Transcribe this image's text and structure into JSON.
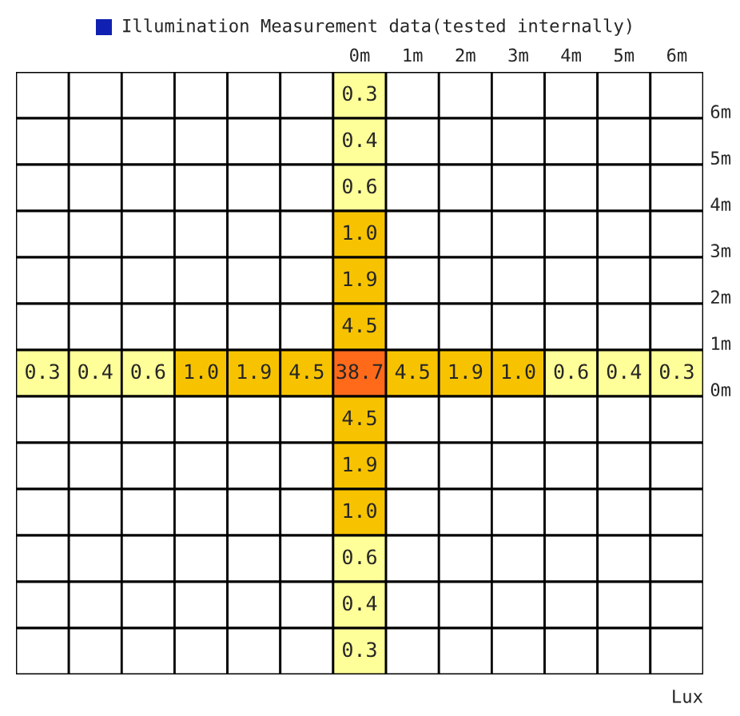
{
  "chart_data": {
    "type": "heatmap",
    "title": "Illumination Measurement data(tested internally)",
    "categories": [
      null,
      null,
      null,
      null,
      null,
      null,
      "0m",
      "1m",
      "2m",
      "3m",
      "4m",
      "5m",
      "6m"
    ],
    "y_categories": [
      null,
      null,
      null,
      null,
      null,
      null,
      null,
      null,
      null,
      null,
      null,
      null,
      null
    ],
    "y2_categories": [
      "6m",
      "5m",
      "4m",
      "3m",
      "2m",
      "1m",
      "0m",
      null,
      null,
      null,
      null,
      null,
      null
    ],
    "cells": [
      [
        null,
        null,
        null,
        null,
        null,
        null,
        0.3,
        null,
        null,
        null,
        null,
        null,
        null
      ],
      [
        null,
        null,
        null,
        null,
        null,
        null,
        0.4,
        null,
        null,
        null,
        null,
        null,
        null
      ],
      [
        null,
        null,
        null,
        null,
        null,
        null,
        0.6,
        null,
        null,
        null,
        null,
        null,
        null
      ],
      [
        null,
        null,
        null,
        null,
        null,
        null,
        1.0,
        null,
        null,
        null,
        null,
        null,
        null
      ],
      [
        null,
        null,
        null,
        null,
        null,
        null,
        1.9,
        null,
        null,
        null,
        null,
        null,
        null
      ],
      [
        null,
        null,
        null,
        null,
        null,
        null,
        4.5,
        null,
        null,
        null,
        null,
        null,
        null
      ],
      [
        0.3,
        0.4,
        0.6,
        1.0,
        1.9,
        4.5,
        38.7,
        4.5,
        1.9,
        1.0,
        0.6,
        0.4,
        0.3
      ],
      [
        null,
        null,
        null,
        null,
        null,
        null,
        4.5,
        null,
        null,
        null,
        null,
        null,
        null
      ],
      [
        null,
        null,
        null,
        null,
        null,
        null,
        1.9,
        null,
        null,
        null,
        null,
        null,
        null
      ],
      [
        null,
        null,
        null,
        null,
        null,
        null,
        1.0,
        null,
        null,
        null,
        null,
        null,
        null
      ],
      [
        null,
        null,
        null,
        null,
        null,
        null,
        0.6,
        null,
        null,
        null,
        null,
        null,
        null
      ],
      [
        null,
        null,
        null,
        null,
        null,
        null,
        0.4,
        null,
        null,
        null,
        null,
        null,
        null
      ],
      [
        null,
        null,
        null,
        null,
        null,
        null,
        0.3,
        null,
        null,
        null,
        null,
        null,
        null
      ]
    ],
    "colors": [
      [
        null,
        null,
        null,
        null,
        null,
        null,
        "#ffff99",
        null,
        null,
        null,
        null,
        null,
        null
      ],
      [
        null,
        null,
        null,
        null,
        null,
        null,
        "#ffff99",
        null,
        null,
        null,
        null,
        null,
        null
      ],
      [
        null,
        null,
        null,
        null,
        null,
        null,
        "#ffff99",
        null,
        null,
        null,
        null,
        null,
        null
      ],
      [
        null,
        null,
        null,
        null,
        null,
        null,
        "#f7c300",
        null,
        null,
        null,
        null,
        null,
        null
      ],
      [
        null,
        null,
        null,
        null,
        null,
        null,
        "#f7c300",
        null,
        null,
        null,
        null,
        null,
        null
      ],
      [
        null,
        null,
        null,
        null,
        null,
        null,
        "#f7c300",
        null,
        null,
        null,
        null,
        null,
        null
      ],
      [
        "#ffff99",
        "#ffff99",
        "#ffff99",
        "#f7c300",
        "#f7c300",
        "#f7c300",
        "#ff6a1a",
        "#f7c300",
        "#f7c300",
        "#f7c300",
        "#ffff99",
        "#ffff99",
        "#ffff99"
      ],
      [
        null,
        null,
        null,
        null,
        null,
        null,
        "#f7c300",
        null,
        null,
        null,
        null,
        null,
        null
      ],
      [
        null,
        null,
        null,
        null,
        null,
        null,
        "#f7c300",
        null,
        null,
        null,
        null,
        null,
        null
      ],
      [
        null,
        null,
        null,
        null,
        null,
        null,
        "#f7c300",
        null,
        null,
        null,
        null,
        null,
        null
      ],
      [
        null,
        null,
        null,
        null,
        null,
        null,
        "#ffff99",
        null,
        null,
        null,
        null,
        null,
        null
      ],
      [
        null,
        null,
        null,
        null,
        null,
        null,
        "#ffff99",
        null,
        null,
        null,
        null,
        null,
        null
      ],
      [
        null,
        null,
        null,
        null,
        null,
        null,
        "#ffff99",
        null,
        null,
        null,
        null,
        null,
        null
      ]
    ],
    "cell_labels": [
      [
        null,
        null,
        null,
        null,
        null,
        null,
        "0.3",
        null,
        null,
        null,
        null,
        null,
        null
      ],
      [
        null,
        null,
        null,
        null,
        null,
        null,
        "0.4",
        null,
        null,
        null,
        null,
        null,
        null
      ],
      [
        null,
        null,
        null,
        null,
        null,
        null,
        "0.6",
        null,
        null,
        null,
        null,
        null,
        null
      ],
      [
        null,
        null,
        null,
        null,
        null,
        null,
        "1.0",
        null,
        null,
        null,
        null,
        null,
        null
      ],
      [
        null,
        null,
        null,
        null,
        null,
        null,
        "1.9",
        null,
        null,
        null,
        null,
        null,
        null
      ],
      [
        null,
        null,
        null,
        null,
        null,
        null,
        "4.5",
        null,
        null,
        null,
        null,
        null,
        null
      ],
      [
        "0.3",
        "0.4",
        "0.6",
        "1.0",
        "1.9",
        "4.5",
        "38.7",
        "4.5",
        "1.9",
        "1.0",
        "0.6",
        "0.4",
        "0.3"
      ],
      [
        null,
        null,
        null,
        null,
        null,
        null,
        "4.5",
        null,
        null,
        null,
        null,
        null,
        null
      ],
      [
        null,
        null,
        null,
        null,
        null,
        null,
        "1.9",
        null,
        null,
        null,
        null,
        null,
        null
      ],
      [
        null,
        null,
        null,
        null,
        null,
        null,
        "1.0",
        null,
        null,
        null,
        null,
        null,
        null
      ],
      [
        null,
        null,
        null,
        null,
        null,
        null,
        "0.6",
        null,
        null,
        null,
        null,
        null,
        null
      ],
      [
        null,
        null,
        null,
        null,
        null,
        null,
        "0.4",
        null,
        null,
        null,
        null,
        null,
        null
      ],
      [
        null,
        null,
        null,
        null,
        null,
        null,
        "0.3",
        null,
        null,
        null,
        null,
        null,
        null
      ]
    ],
    "annotations": [
      "Lux"
    ]
  }
}
